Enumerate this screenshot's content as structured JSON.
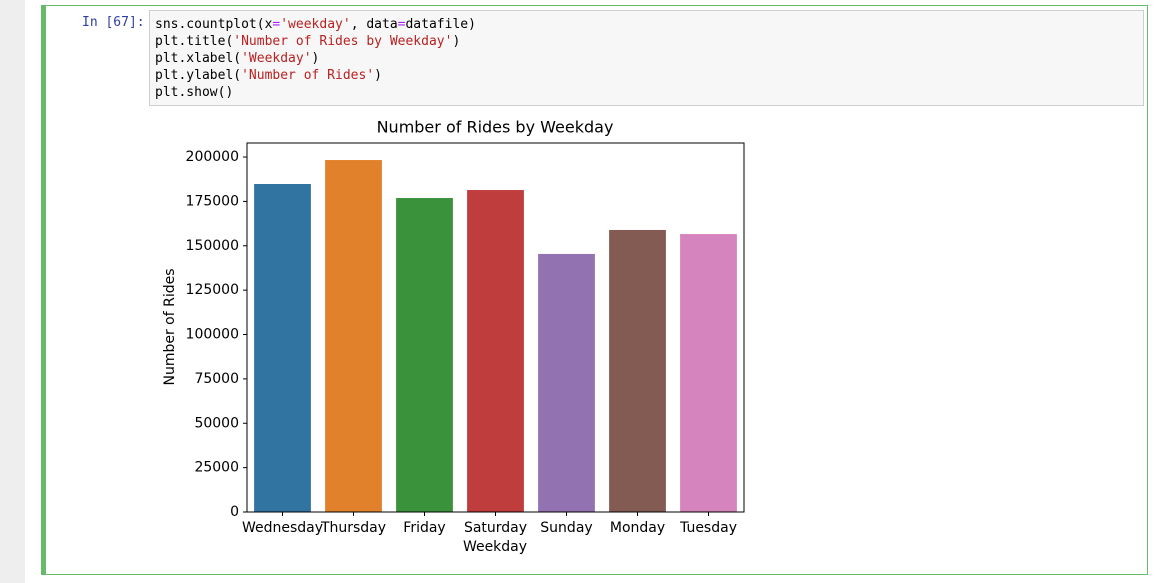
{
  "cell": {
    "prompt": "In [67]:",
    "code": [
      "sns.countplot(x='weekday', data=datafile)",
      "plt.title('Number of Rides by Weekday')",
      "plt.xlabel('Weekday')",
      "plt.ylabel('Number of Rides')",
      "plt.show()"
    ]
  },
  "chart_data": {
    "type": "bar",
    "title": "Number of Rides by Weekday",
    "x_label": "Weekday",
    "y_label": "Number of Rides",
    "categories": [
      "Wednesday",
      "Thursday",
      "Friday",
      "Saturday",
      "Sunday",
      "Monday",
      "Tuesday"
    ],
    "values": [
      184800,
      198300,
      176900,
      181400,
      145400,
      158900,
      156600
    ],
    "colors": [
      "#3274a1",
      "#e1812c",
      "#3a923a",
      "#c03d3e",
      "#9372b2",
      "#845b53",
      "#d684bd"
    ],
    "ylim": [
      0,
      207900
    ],
    "yticks": [
      0,
      25000,
      50000,
      75000,
      100000,
      125000,
      150000,
      175000,
      200000
    ],
    "grid": false
  }
}
